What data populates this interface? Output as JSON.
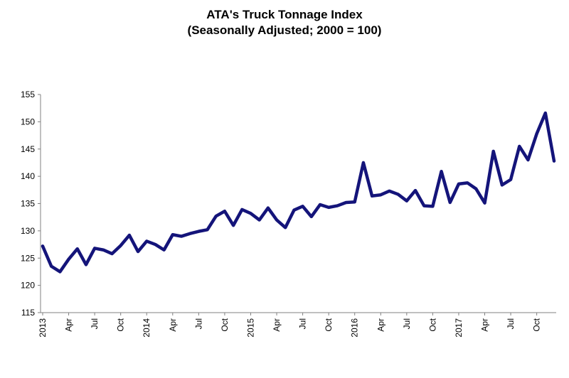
{
  "chart_data": {
    "type": "line",
    "title": "ATA's Truck Tonnage Index",
    "subtitle": "(Seasonally Adjusted; 2000 = 100)",
    "categories": [
      "2013",
      null,
      null,
      "Apr",
      null,
      null,
      "Jul",
      null,
      null,
      "Oct",
      null,
      null,
      "2014",
      null,
      null,
      "Apr",
      null,
      null,
      "Jul",
      null,
      null,
      "Oct",
      null,
      null,
      "2015",
      null,
      null,
      "Apr",
      null,
      null,
      "Jul",
      null,
      null,
      "Oct",
      null,
      null,
      "2016",
      null,
      null,
      "Apr",
      null,
      null,
      "Jul",
      null,
      null,
      "Oct",
      null,
      null,
      "2017",
      null,
      null,
      "Apr",
      null,
      null,
      "Jul",
      null,
      null,
      "Oct",
      null,
      null
    ],
    "values": [
      127.2,
      123.5,
      122.5,
      124.8,
      126.7,
      123.8,
      126.8,
      126.5,
      125.8,
      127.3,
      129.2,
      126.2,
      128.1,
      127.5,
      126.5,
      129.3,
      129.0,
      129.5,
      129.9,
      130.2,
      132.7,
      133.6,
      131.0,
      133.9,
      133.2,
      132.0,
      134.2,
      132.0,
      130.6,
      133.8,
      134.5,
      132.6,
      134.8,
      134.3,
      134.6,
      135.2,
      135.3,
      142.5,
      136.4,
      136.6,
      137.3,
      136.7,
      135.5,
      137.4,
      134.6,
      134.5,
      140.9,
      135.2,
      138.6,
      138.8,
      137.7,
      135.1,
      144.6,
      138.4,
      139.4,
      145.5,
      143.0,
      147.8,
      151.6,
      142.8
    ],
    "color": "#14147a",
    "ylim": [
      115,
      155
    ],
    "yticks": [
      115,
      120,
      125,
      130,
      135,
      140,
      145,
      150,
      155
    ],
    "grid": false
  }
}
